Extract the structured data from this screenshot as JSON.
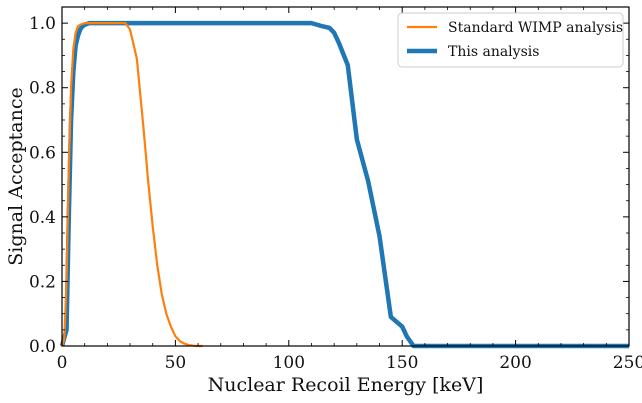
{
  "chart_data": {
    "type": "line",
    "title": "",
    "xlabel": "Nuclear Recoil Energy [keV]",
    "ylabel": "Signal Acceptance",
    "xlim": [
      0,
      250
    ],
    "ylim": [
      0,
      1.05
    ],
    "xticks": [
      0,
      50,
      100,
      150,
      200,
      250
    ],
    "xtick_labels": [
      "0",
      "50",
      "100",
      "150",
      "200",
      "250"
    ],
    "yticks": [
      0.0,
      0.2,
      0.4,
      0.6,
      0.8,
      1.0
    ],
    "ytick_labels": [
      "0.0",
      "0.2",
      "0.4",
      "0.6",
      "0.8",
      "1.0"
    ],
    "grid": false,
    "legend_position": "top-right",
    "series": [
      {
        "name": "Standard WIMP analysis",
        "color": "#ff7f0e",
        "x": [
          0,
          1,
          2,
          3,
          4,
          5,
          6,
          7,
          8,
          10,
          12,
          15,
          20,
          25,
          28,
          30,
          33,
          36,
          38,
          40,
          42,
          44,
          46,
          48,
          50,
          52,
          54,
          56,
          58,
          60,
          62
        ],
        "y": [
          0.0,
          0.02,
          0.2,
          0.55,
          0.8,
          0.92,
          0.97,
          0.99,
          0.995,
          1.0,
          1.0,
          1.0,
          1.0,
          1.0,
          1.0,
          0.98,
          0.89,
          0.67,
          0.51,
          0.37,
          0.25,
          0.16,
          0.1,
          0.06,
          0.03,
          0.015,
          0.007,
          0.003,
          0.001,
          0.0,
          0.0
        ]
      },
      {
        "name": "This analysis",
        "color": "#1f77b4",
        "x": [
          0,
          2,
          3,
          4,
          5,
          6,
          7,
          8,
          9,
          10,
          12,
          15,
          20,
          50,
          100,
          110,
          115,
          118,
          120,
          122,
          126,
          130,
          135,
          140,
          145,
          150,
          152,
          155,
          158,
          200,
          250
        ],
        "y": [
          0.0,
          0.05,
          0.4,
          0.7,
          0.85,
          0.93,
          0.96,
          0.98,
          0.99,
          0.995,
          1.0,
          1.0,
          1.0,
          1.0,
          1.0,
          1.0,
          0.99,
          0.985,
          0.97,
          0.94,
          0.87,
          0.64,
          0.51,
          0.34,
          0.09,
          0.06,
          0.03,
          0.0,
          0.0,
          0.0,
          0.0
        ]
      }
    ]
  }
}
